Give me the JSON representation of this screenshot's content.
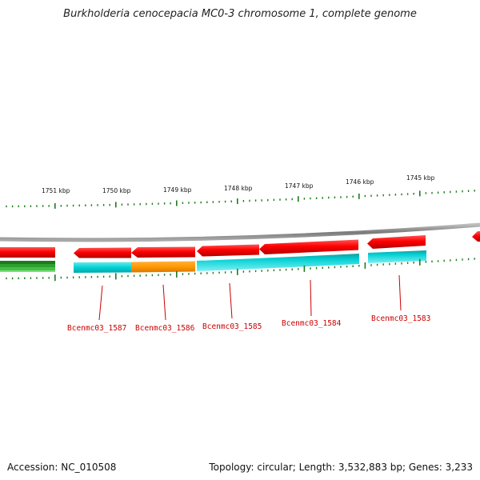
{
  "title": "Burkholderia cenocepacia MC0-3 chromosome 1, complete genome",
  "footer": {
    "accession": "Accession: NC_010508",
    "summary": "Topology: circular; Length: 3,532,883 bp; Genes: 3,233"
  },
  "scale_labels": [
    "1751 kbp",
    "1750 kbp",
    "1749 kbp",
    "1748 kbp",
    "1747 kbp",
    "1746 kbp",
    "1745 kbp"
  ],
  "gene_labels": [
    "Bcenmc03_1587",
    "Bcenmc03_1586",
    "Bcenmc03_1585",
    "Bcenmc03_1584",
    "Bcenmc03_1583"
  ],
  "colors": {
    "cds": "#ff0000",
    "cds_dark": "#b80000",
    "feature_cyan": "#00d2d6",
    "feature_orange": "#ff9900",
    "gc_green": "#22aa22",
    "tick": "#1f7a1f",
    "backbone": "#8c8c8c",
    "label": "#cc0000"
  }
}
